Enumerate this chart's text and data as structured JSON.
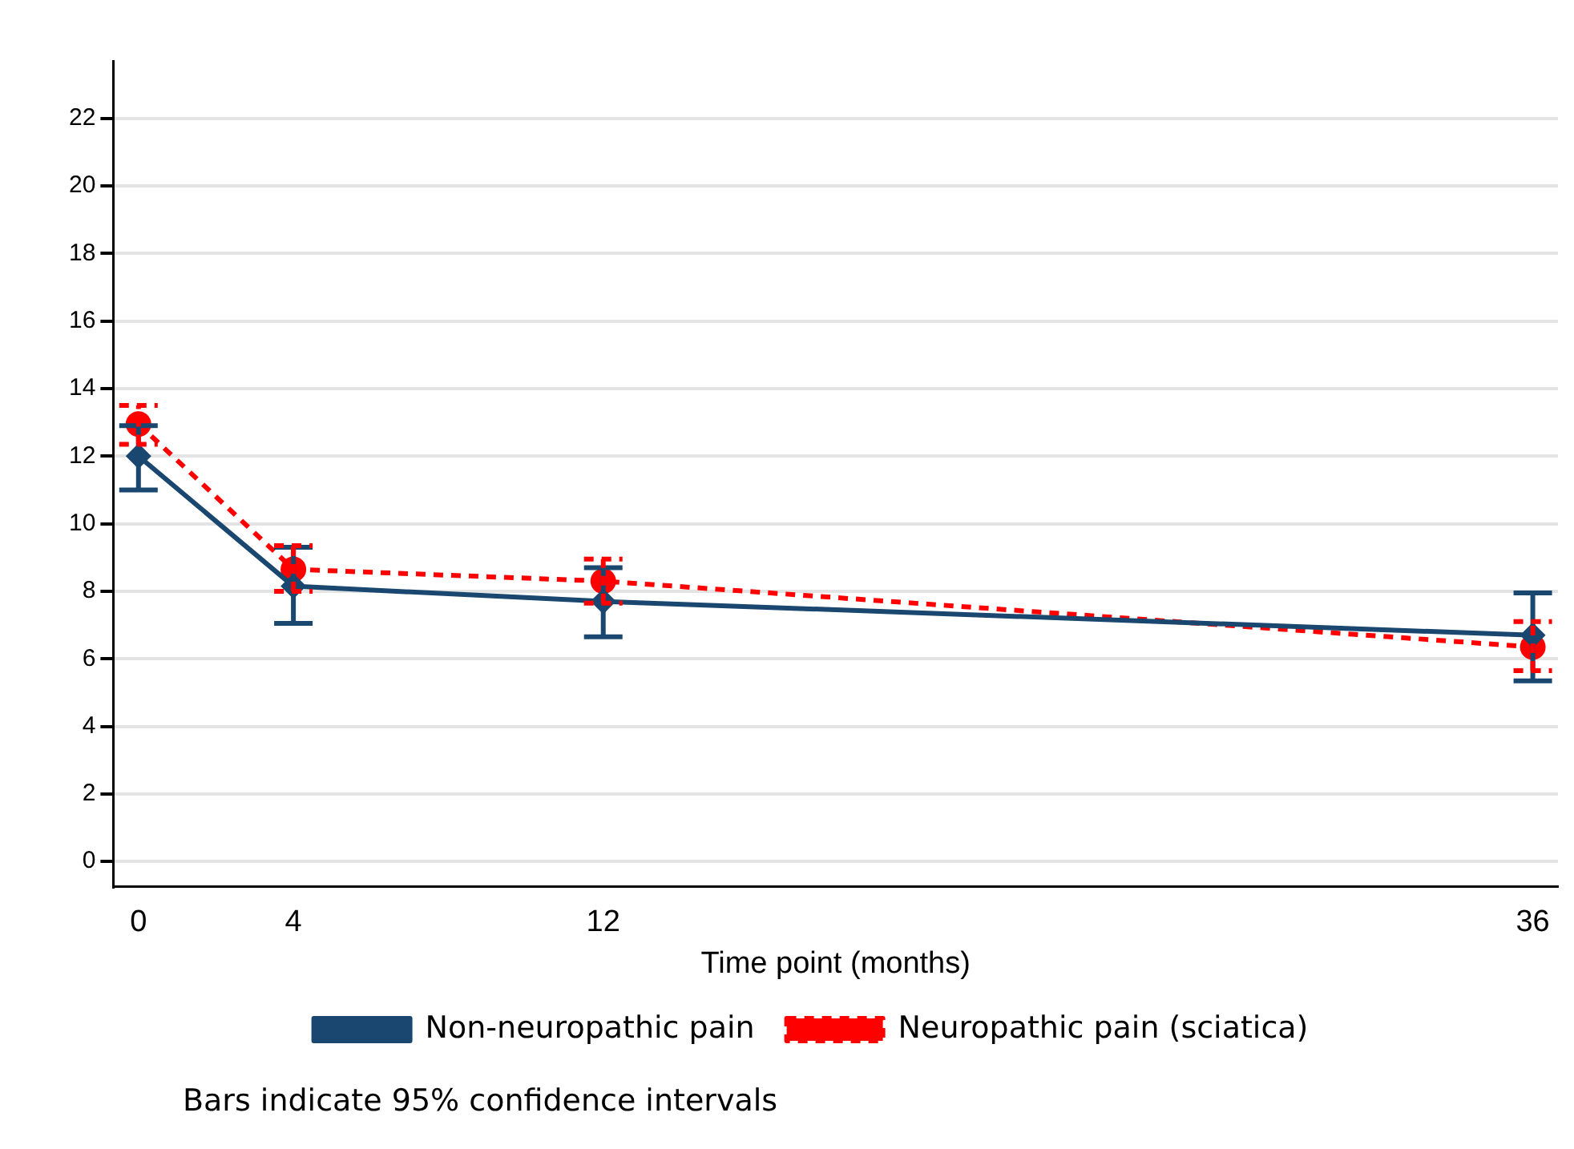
{
  "chart_data": {
    "type": "line",
    "xlabel": "Time point (months)",
    "x": [
      0,
      4,
      12,
      36
    ],
    "xlim": [
      -0.65,
      36.65
    ],
    "xticks": [
      0,
      4,
      12,
      36
    ],
    "ylim": [
      -0.75,
      23.7
    ],
    "yticks": [
      0,
      2,
      4,
      6,
      8,
      10,
      12,
      14,
      16,
      18,
      20,
      22
    ],
    "series": [
      {
        "name": "Non-neuropathic pain",
        "color": "#1a476f",
        "marker": "diamond",
        "line_style": "solid",
        "values": [
          12.0,
          8.15,
          7.7,
          6.7
        ],
        "errors": [
          [
            11.0,
            12.9
          ],
          [
            7.05,
            9.3
          ],
          [
            6.65,
            8.7
          ],
          [
            5.35,
            7.95
          ]
        ]
      },
      {
        "name": "Neuropathic pain (sciatica)",
        "color": "#ff0000",
        "marker": "circle",
        "line_style": "dashed",
        "values": [
          12.95,
          8.65,
          8.3,
          6.35
        ],
        "errors": [
          [
            12.35,
            13.5
          ],
          [
            8.0,
            9.35
          ],
          [
            7.65,
            8.95
          ],
          [
            5.65,
            7.1
          ]
        ]
      }
    ],
    "grid": "y",
    "legend": "bottom",
    "annotations": [
      "Bars indicate 95% confidence intervals"
    ]
  }
}
